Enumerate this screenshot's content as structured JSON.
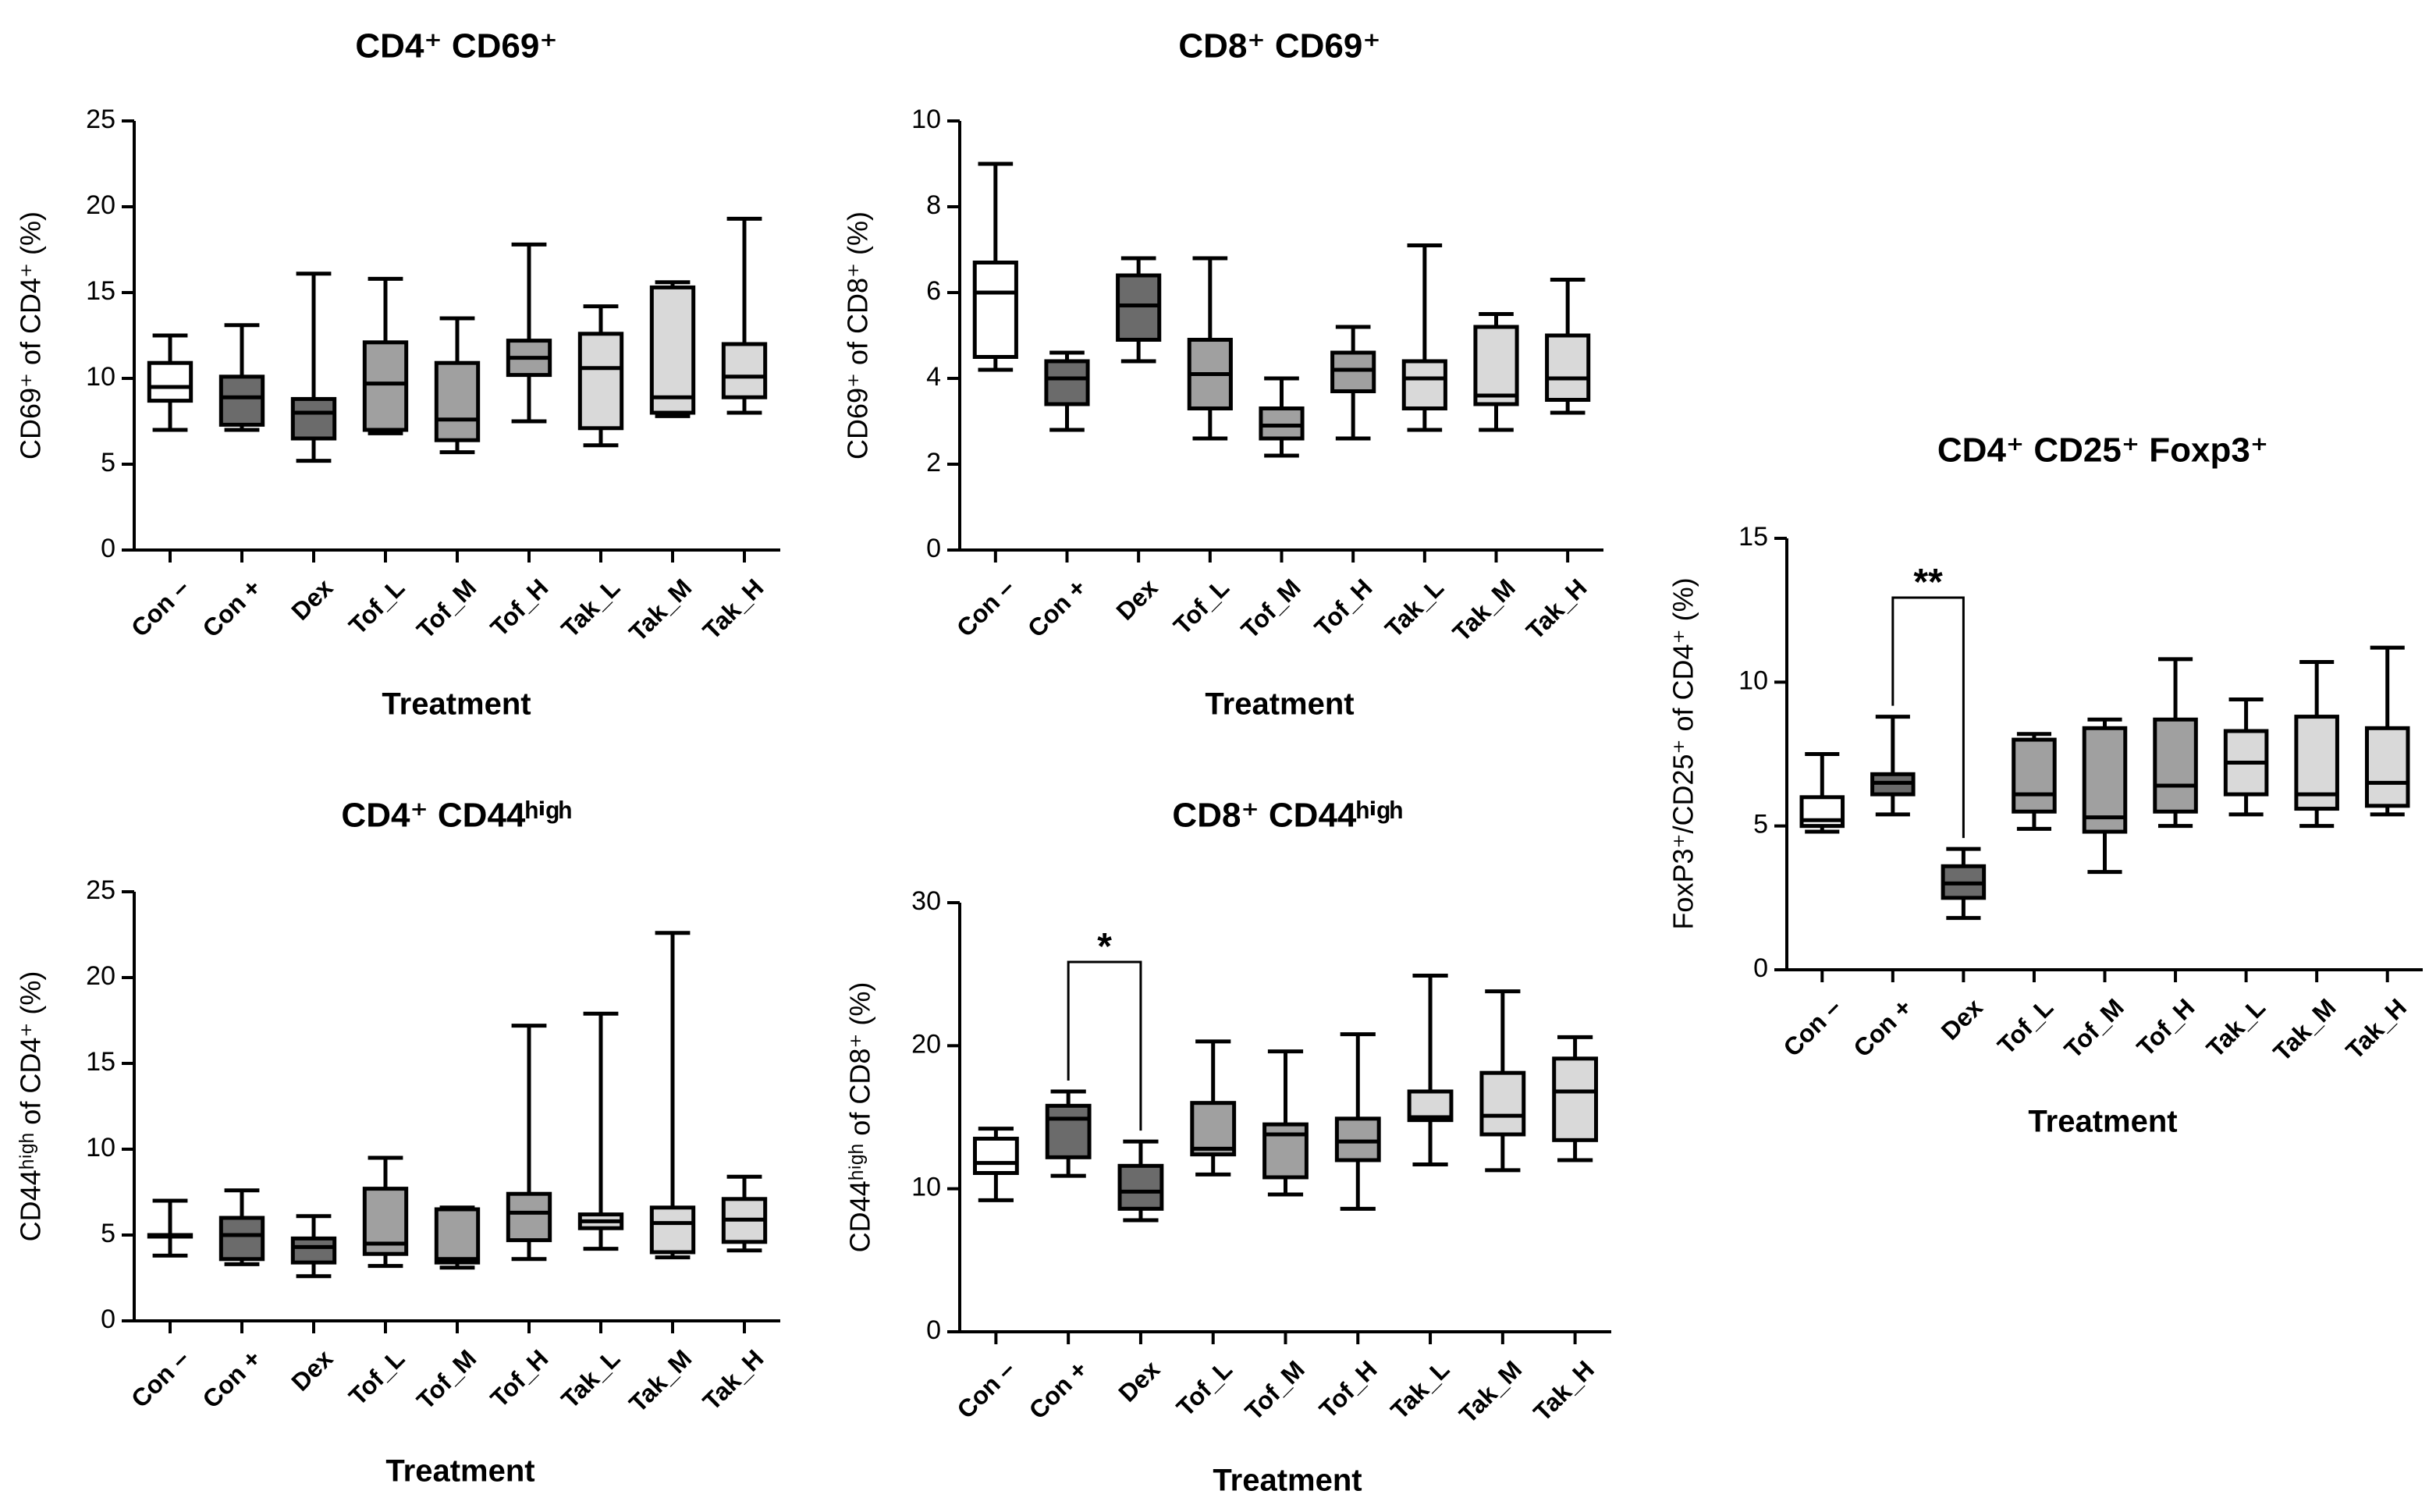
{
  "chart_data": [
    {
      "id": "cd4-cd69",
      "type": "box",
      "title": "CD4⁺ CD69⁺",
      "xlabel": "Treatment",
      "ylabel": "CD69⁺ of CD4⁺ (%)",
      "ylim": [
        0,
        25
      ],
      "yticks": [
        0,
        5,
        10,
        15,
        20,
        25
      ],
      "categories": [
        "Con –",
        "Con +",
        "Dex",
        "Tof_L",
        "Tof_M",
        "Tof_H",
        "Tak_L",
        "Tak_M",
        "Tak_H"
      ],
      "boxes": [
        {
          "min": 7.0,
          "q1": 8.7,
          "median": 9.5,
          "q3": 10.9,
          "max": 12.5
        },
        {
          "min": 7.0,
          "q1": 7.3,
          "median": 8.9,
          "q3": 10.1,
          "max": 13.1
        },
        {
          "min": 5.2,
          "q1": 6.5,
          "median": 8.0,
          "q3": 8.8,
          "max": 16.1
        },
        {
          "min": 6.8,
          "q1": 7.0,
          "median": 9.7,
          "q3": 12.1,
          "max": 15.8
        },
        {
          "min": 5.7,
          "q1": 6.4,
          "median": 7.6,
          "q3": 10.9,
          "max": 13.5
        },
        {
          "min": 7.5,
          "q1": 10.2,
          "median": 11.2,
          "q3": 12.2,
          "max": 17.8
        },
        {
          "min": 6.1,
          "q1": 7.1,
          "median": 10.6,
          "q3": 12.6,
          "max": 14.2
        },
        {
          "min": 7.8,
          "q1": 8.0,
          "median": 8.9,
          "q3": 15.3,
          "max": 15.6
        },
        {
          "min": 8.0,
          "q1": 8.9,
          "median": 10.1,
          "q3": 12.0,
          "max": 19.3
        }
      ]
    },
    {
      "id": "cd8-cd69",
      "type": "box",
      "title": "CD8⁺ CD69⁺",
      "xlabel": "Treatment",
      "ylabel": "CD69⁺ of CD8⁺ (%)",
      "ylim": [
        0,
        10
      ],
      "yticks": [
        0,
        2,
        4,
        6,
        8,
        10
      ],
      "categories": [
        "Con –",
        "Con +",
        "Dex",
        "Tof_L",
        "Tof_M",
        "Tof_H",
        "Tak_L",
        "Tak_M",
        "Tak_H"
      ],
      "boxes": [
        {
          "min": 4.2,
          "q1": 4.5,
          "median": 6.0,
          "q3": 6.7,
          "max": 9.0
        },
        {
          "min": 2.8,
          "q1": 3.4,
          "median": 4.0,
          "q3": 4.4,
          "max": 4.6
        },
        {
          "min": 4.4,
          "q1": 4.9,
          "median": 5.7,
          "q3": 6.4,
          "max": 6.8
        },
        {
          "min": 2.6,
          "q1": 3.3,
          "median": 4.1,
          "q3": 4.9,
          "max": 6.8
        },
        {
          "min": 2.2,
          "q1": 2.6,
          "median": 2.9,
          "q3": 3.3,
          "max": 4.0
        },
        {
          "min": 2.6,
          "q1": 3.7,
          "median": 4.2,
          "q3": 4.6,
          "max": 5.2
        },
        {
          "min": 2.8,
          "q1": 3.3,
          "median": 4.0,
          "q3": 4.4,
          "max": 7.1
        },
        {
          "min": 2.8,
          "q1": 3.4,
          "median": 3.6,
          "q3": 5.2,
          "max": 5.5
        },
        {
          "min": 3.2,
          "q1": 3.5,
          "median": 4.0,
          "q3": 5.0,
          "max": 6.3
        }
      ]
    },
    {
      "id": "cd4-cd25-foxp3",
      "type": "box",
      "title": "CD4⁺ CD25⁺ Foxp3⁺",
      "xlabel": "Treatment",
      "ylabel": "FoxP3⁺/CD25⁺ of CD4⁺ (%)",
      "ylim": [
        0,
        15
      ],
      "yticks": [
        0,
        5,
        10,
        15
      ],
      "categories": [
        "Con –",
        "Con +",
        "Dex",
        "Tof_L",
        "Tof_M",
        "Tof_H",
        "Tak_L",
        "Tak_M",
        "Tak_H"
      ],
      "boxes": [
        {
          "min": 4.8,
          "q1": 5.0,
          "median": 5.2,
          "q3": 6.0,
          "max": 7.5
        },
        {
          "min": 5.4,
          "q1": 6.1,
          "median": 6.5,
          "q3": 6.8,
          "max": 8.8
        },
        {
          "min": 1.8,
          "q1": 2.5,
          "median": 3.0,
          "q3": 3.6,
          "max": 4.2
        },
        {
          "min": 4.9,
          "q1": 5.5,
          "median": 6.1,
          "q3": 8.0,
          "max": 8.2
        },
        {
          "min": 3.4,
          "q1": 4.8,
          "median": 5.3,
          "q3": 8.4,
          "max": 8.7
        },
        {
          "min": 5.0,
          "q1": 5.5,
          "median": 6.4,
          "q3": 8.7,
          "max": 10.8
        },
        {
          "min": 5.4,
          "q1": 6.1,
          "median": 7.2,
          "q3": 8.3,
          "max": 9.4
        },
        {
          "min": 5.0,
          "q1": 5.6,
          "median": 6.1,
          "q3": 8.8,
          "max": 10.7
        },
        {
          "min": 5.4,
          "q1": 5.7,
          "median": 6.5,
          "q3": 8.4,
          "max": 11.2
        }
      ],
      "significance": [
        {
          "from": 1,
          "to": 2,
          "label": "**"
        }
      ]
    },
    {
      "id": "cd4-cd44",
      "type": "box",
      "title": "CD4⁺ CD44ʰⁱᵍʰ",
      "xlabel": "Treatment",
      "ylabel": "CD44ʰⁱᵍʰ of CD4⁺ (%)",
      "ylim": [
        0,
        25
      ],
      "yticks": [
        0,
        5,
        10,
        15,
        20,
        25
      ],
      "categories": [
        "Con –",
        "Con +",
        "Dex",
        "Tof_L",
        "Tof_M",
        "Tof_H",
        "Tak_L",
        "Tak_M",
        "Tak_H"
      ],
      "boxes": [
        {
          "min": 3.8,
          "q1": 5.0,
          "median": 5.0,
          "q3": 5.0,
          "max": 7.0
        },
        {
          "min": 3.3,
          "q1": 3.6,
          "median": 5.0,
          "q3": 6.0,
          "max": 7.6
        },
        {
          "min": 2.6,
          "q1": 3.4,
          "median": 4.3,
          "q3": 4.8,
          "max": 6.1
        },
        {
          "min": 3.2,
          "q1": 3.9,
          "median": 4.5,
          "q3": 7.7,
          "max": 9.5
        },
        {
          "min": 3.1,
          "q1": 3.4,
          "median": 3.6,
          "q3": 6.5,
          "max": 6.6
        },
        {
          "min": 3.6,
          "q1": 4.7,
          "median": 6.3,
          "q3": 7.4,
          "max": 17.2
        },
        {
          "min": 4.2,
          "q1": 5.4,
          "median": 5.8,
          "q3": 6.2,
          "max": 17.9
        },
        {
          "min": 3.7,
          "q1": 4.0,
          "median": 5.7,
          "q3": 6.6,
          "max": 22.6
        },
        {
          "min": 4.1,
          "q1": 4.6,
          "median": 5.9,
          "q3": 7.1,
          "max": 8.4
        }
      ]
    },
    {
      "id": "cd8-cd44",
      "type": "box",
      "title": "CD8⁺ CD44ʰⁱᵍʰ",
      "xlabel": "Treatment",
      "ylabel": "CD44ʰⁱᵍʰ of CD8⁺ (%)",
      "ylim": [
        0,
        30
      ],
      "yticks": [
        0,
        10,
        20,
        30
      ],
      "categories": [
        "Con –",
        "Con +",
        "Dex",
        "Tof_L",
        "Tof_M",
        "Tof_H",
        "Tak_L",
        "Tak_M",
        "Tak_H"
      ],
      "boxes": [
        {
          "min": 9.2,
          "q1": 11.1,
          "median": 11.8,
          "q3": 13.5,
          "max": 14.2
        },
        {
          "min": 10.9,
          "q1": 12.2,
          "median": 14.9,
          "q3": 15.8,
          "max": 16.8
        },
        {
          "min": 7.8,
          "q1": 8.6,
          "median": 9.8,
          "q3": 11.6,
          "max": 13.3
        },
        {
          "min": 11.0,
          "q1": 12.4,
          "median": 12.8,
          "q3": 16.0,
          "max": 20.3
        },
        {
          "min": 9.6,
          "q1": 10.8,
          "median": 13.8,
          "q3": 14.5,
          "max": 19.6
        },
        {
          "min": 8.6,
          "q1": 12.0,
          "median": 13.3,
          "q3": 14.9,
          "max": 20.8
        },
        {
          "min": 11.7,
          "q1": 14.8,
          "median": 15.0,
          "q3": 16.8,
          "max": 24.9
        },
        {
          "min": 11.3,
          "q1": 13.8,
          "median": 15.1,
          "q3": 18.1,
          "max": 23.8
        },
        {
          "min": 12.0,
          "q1": 13.4,
          "median": 16.8,
          "q3": 19.1,
          "max": 20.6
        }
      ],
      "significance": [
        {
          "from": 1,
          "to": 2,
          "label": "*"
        }
      ]
    }
  ],
  "fill_colors": [
    "#ffffff",
    "#6b6b6b",
    "#6b6b6b",
    "#a0a0a0",
    "#a0a0a0",
    "#a0a0a0",
    "#d9d9d9",
    "#d9d9d9",
    "#d9d9d9"
  ]
}
